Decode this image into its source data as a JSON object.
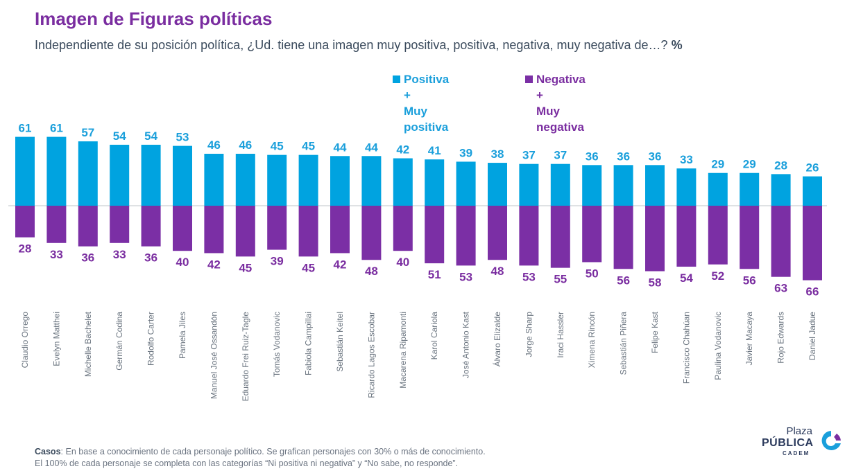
{
  "title": "Imagen de Figuras políticas",
  "subtitle": "Independiente de su posición política, ¿Ud. tiene una imagen muy positiva, positiva, negativa, muy negativa de…?",
  "subtitle_unit": "%",
  "legend": {
    "positive": {
      "line1": "Positiva +",
      "line2": "Muy positiva"
    },
    "negative": {
      "line1": "Negativa +",
      "line2": "Muy negativa"
    }
  },
  "colors": {
    "positive": "#00a3e0",
    "negative": "#7b2fa5",
    "positive_label": "#1a9fdb",
    "negative_label": "#7a2da0",
    "title": "#7a2da0"
  },
  "chart_data": {
    "type": "bar",
    "categories": [
      "Claudio Orrego",
      "Evelyn Matthei",
      "Michelle Bachelet",
      "Germán Codina",
      "Rodolfo Carter",
      "Pamela Jiles",
      "Manuel José Ossandón",
      "Eduardo Frei Ruiz-Tagle",
      "Tomás Vodanovic",
      "Fabiola Campillai",
      "Sebastián Keitel",
      "Ricardo Lagos Escobar",
      "Macarena Ripamonti",
      "Karol Cariola",
      "José Antonio Kast",
      "Álvaro Elizalde",
      "Jorge Sharp",
      "Iraci Hassler",
      "Ximena Rincón",
      "Sebastián Piñera",
      "Felipe Kast",
      "Francisco Chahúan",
      "Paulina Vodanovic",
      "Javier Macaya",
      "Rojo Edwards",
      "Daniel Jadue"
    ],
    "series": [
      {
        "name": "Positiva + Muy positiva",
        "values": [
          61,
          61,
          57,
          54,
          54,
          53,
          46,
          46,
          45,
          45,
          44,
          44,
          42,
          41,
          39,
          38,
          37,
          37,
          36,
          36,
          36,
          33,
          29,
          29,
          28,
          26
        ]
      },
      {
        "name": "Negativa + Muy negativa",
        "values": [
          28,
          33,
          36,
          33,
          36,
          40,
          42,
          45,
          39,
          45,
          42,
          48,
          40,
          51,
          53,
          48,
          53,
          55,
          50,
          56,
          58,
          54,
          52,
          56,
          63,
          66
        ]
      }
    ],
    "legend_position": "top-center",
    "grid": false
  },
  "footer": {
    "cases_label": "Casos",
    "line1": ": En base a conocimiento de cada personaje político. Se grafican personajes con 30% o más de conocimiento.",
    "line2": "El 100% de cada personaje se completa con las categorías “Ni positiva ni negativa” y “No sabe, no responde”."
  },
  "logo": {
    "line1": "Plaza",
    "line2": "PÚBLICA",
    "line3": "CADEM"
  }
}
